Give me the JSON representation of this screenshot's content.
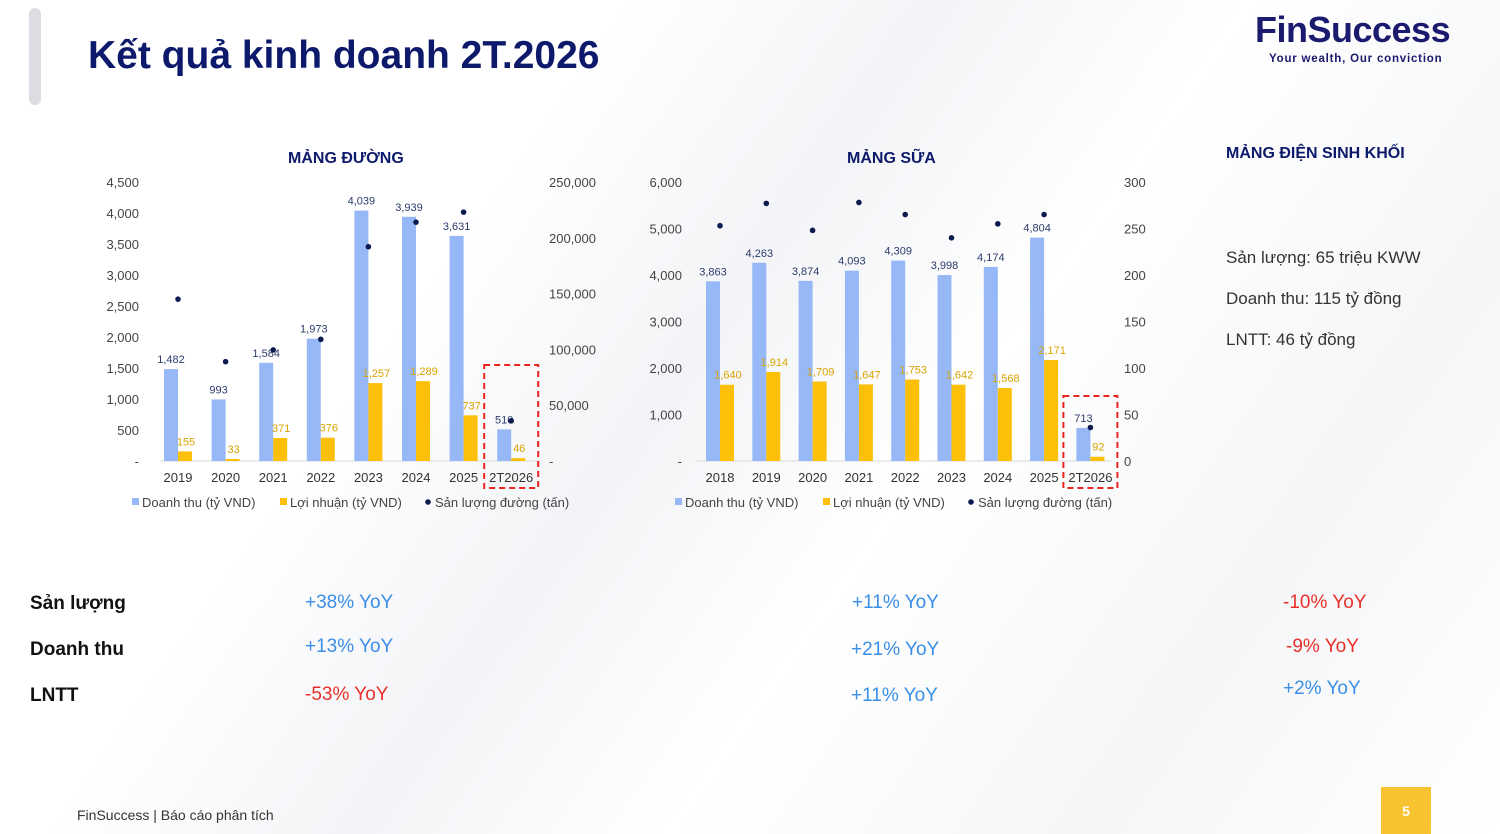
{
  "header": {
    "title": "Kết quả kinh doanh 2T.2026",
    "logo_text": "FinSuccess",
    "logo_tagline": "Your wealth, Our conviction"
  },
  "colors": {
    "revenue": "#97b8f7",
    "profit": "#fcbf0a",
    "volume": "#0b1a4f",
    "highlight": "#e8251f",
    "title": "#0d1a6b"
  },
  "chart_data": [
    {
      "type": "bar",
      "title": "MẢNG ĐƯỜNG",
      "categories": [
        "2019",
        "2020",
        "2021",
        "2022",
        "2023",
        "2024",
        "2025",
        "2T2026"
      ],
      "y_ticks": [
        "-",
        "500",
        "1,000",
        "1,500",
        "2,000",
        "2,500",
        "3,000",
        "3,500",
        "4,000",
        "4,500"
      ],
      "y2_ticks": [
        "-",
        "50,000",
        "100,000",
        "150,000",
        "200,000",
        "250,000"
      ],
      "ylim": [
        0,
        4500
      ],
      "y2lim": [
        0,
        250000
      ],
      "series": [
        {
          "name": "Doanh thu (tỷ VND)",
          "kind": "bar",
          "values": [
            1482,
            993,
            1584,
            1973,
            4039,
            3939,
            3631,
            510
          ],
          "labels": [
            "1,482",
            "993",
            "1,584",
            "1,973",
            "4,039",
            "3,939",
            "3,631",
            "510"
          ]
        },
        {
          "name": "Lợi nhuận (tỷ VND)",
          "kind": "bar",
          "values": [
            155,
            33,
            371,
            376,
            1257,
            1289,
            737,
            46
          ],
          "labels": [
            "155",
            "33",
            "371",
            "376",
            "1,257",
            "1,289",
            "737",
            "46"
          ]
        },
        {
          "name": "Sản lượng đường (tấn)",
          "kind": "scatter",
          "axis": "right",
          "values": [
            145000,
            89000,
            99500,
            109000,
            192000,
            214000,
            223000,
            36000
          ]
        }
      ],
      "highlight": "2T2026",
      "legend": "bottom"
    },
    {
      "type": "bar",
      "title": "MẢNG SỮA",
      "categories": [
        "2018",
        "2019",
        "2020",
        "2021",
        "2022",
        "2023",
        "2024",
        "2025",
        "2T2026"
      ],
      "y_ticks": [
        "-",
        "1,000",
        "2,000",
        "3,000",
        "4,000",
        "5,000",
        "6,000"
      ],
      "y2_ticks": [
        "0",
        "50",
        "100",
        "150",
        "200",
        "250",
        "300"
      ],
      "ylim": [
        0,
        6000
      ],
      "y2lim": [
        0,
        300
      ],
      "series": [
        {
          "name": "Doanh thu (tỷ VND)",
          "kind": "bar",
          "values": [
            3863,
            4263,
            3874,
            4093,
            4309,
            3998,
            4174,
            4804,
            713
          ],
          "labels": [
            "3,863",
            "4,263",
            "3,874",
            "4,093",
            "4,309",
            "3,998",
            "4,174",
            "4,804",
            "713"
          ]
        },
        {
          "name": "Lợi nhuận (tỷ VND)",
          "kind": "bar",
          "values": [
            1640,
            1914,
            1709,
            1647,
            1753,
            1642,
            1568,
            2171,
            92
          ],
          "labels": [
            "1,640",
            "1,914",
            "1,709",
            "1,647",
            "1,753",
            "1,642",
            "1,568",
            "2,171",
            "92"
          ]
        },
        {
          "name": "Sản lượng đường (tấn)",
          "kind": "scatter",
          "axis": "right",
          "values": [
            253,
            277,
            248,
            278,
            265,
            240,
            255,
            265,
            36
          ]
        }
      ],
      "highlight": "2T2026",
      "legend": "bottom"
    }
  ],
  "biomass": {
    "title": "MẢNG ĐIỆN SINH KHỐI",
    "lines": [
      "Sản lượng: 65 triệu KWW",
      "Doanh thu: 115 tỷ đồng",
      "LNTT: 46 tỷ đồng"
    ]
  },
  "summary": {
    "rows": [
      "Sản lượng",
      "Doanh thu",
      "LNTT"
    ],
    "duong": [
      "+38% YoY",
      "+13% YoY",
      "-53% YoY"
    ],
    "sua": [
      "+11% YoY",
      "+21% YoY",
      "+11% YoY"
    ],
    "dien": [
      "-10% YoY",
      "-9% YoY",
      "+2% YoY"
    ]
  },
  "footer": {
    "text": "FinSuccess | Báo cáo phân tích",
    "page": "5"
  }
}
